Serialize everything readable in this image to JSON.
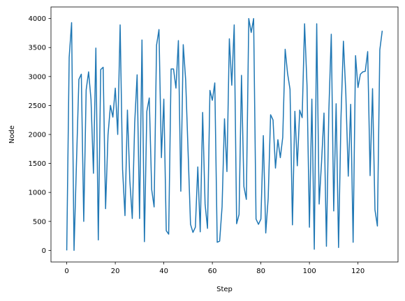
{
  "chart_data": {
    "type": "line",
    "title": "",
    "xlabel": "Step",
    "ylabel": "Node",
    "xlim": [
      -6.5,
      136.5
    ],
    "ylim": [
      -200,
      4200
    ],
    "xticks": [
      0,
      20,
      40,
      60,
      80,
      100,
      120
    ],
    "yticks": [
      0,
      500,
      1000,
      1500,
      2000,
      2500,
      3000,
      3500,
      4000
    ],
    "grid": false,
    "line_color": "#1f77b4",
    "series": [
      {
        "x": [
          0,
          1,
          2,
          3,
          4,
          5,
          6,
          7,
          8,
          9,
          10,
          11,
          12,
          13,
          14,
          15,
          16,
          17,
          18,
          19,
          20,
          21,
          22,
          23,
          24,
          25,
          26,
          27,
          28,
          29,
          30,
          31,
          32,
          33,
          34,
          35,
          36,
          37,
          38,
          39,
          40,
          41,
          42,
          43,
          44,
          45,
          46,
          47,
          48,
          49,
          50,
          51,
          52,
          53,
          54,
          55,
          56,
          57,
          58,
          59,
          60,
          61,
          62,
          63,
          64,
          65,
          66,
          67,
          68,
          69,
          70,
          71,
          72,
          73,
          74,
          75,
          76,
          77,
          78,
          79,
          80,
          81,
          82,
          83,
          84,
          85,
          86,
          87,
          88,
          89,
          90,
          91,
          92,
          93,
          94,
          95,
          96,
          97,
          98,
          99,
          100,
          101,
          102,
          103,
          104,
          105,
          106,
          107,
          108,
          109,
          110,
          111,
          112,
          113,
          114,
          115,
          116,
          117,
          118,
          119,
          120,
          121,
          122,
          123,
          124,
          125,
          126,
          127,
          128,
          129,
          130
        ],
        "y": [
          0,
          3330,
          3930,
          0,
          1500,
          2950,
          3040,
          500,
          2770,
          3080,
          2600,
          1330,
          3490,
          180,
          3120,
          3160,
          720,
          1990,
          2500,
          2300,
          2800,
          2000,
          3890,
          1400,
          600,
          2420,
          1200,
          550,
          2200,
          3030,
          550,
          3630,
          150,
          2400,
          2630,
          1050,
          750,
          3540,
          3810,
          1600,
          2610,
          340,
          280,
          3130,
          3130,
          2800,
          3620,
          1020,
          3550,
          2940,
          1700,
          450,
          310,
          400,
          1440,
          320,
          2380,
          800,
          380,
          2760,
          2590,
          2890,
          140,
          160,
          750,
          2270,
          1360,
          3650,
          2850,
          3890,
          460,
          620,
          3020,
          1100,
          880,
          4000,
          3760,
          4000,
          540,
          450,
          540,
          1980,
          300,
          900,
          2340,
          2250,
          1420,
          1910,
          1600,
          1950,
          3470,
          3050,
          2780,
          440,
          2400,
          1460,
          2420,
          2290,
          3910,
          2850,
          400,
          2610,
          20,
          3910,
          800,
          1530,
          2370,
          70,
          2410,
          3730,
          680,
          2530,
          50,
          2290,
          3610,
          2700,
          1280,
          2520,
          140,
          3360,
          2810,
          3040,
          3080,
          3090,
          3430,
          1290,
          2790,
          700,
          420,
          3460,
          3790
        ]
      }
    ]
  }
}
